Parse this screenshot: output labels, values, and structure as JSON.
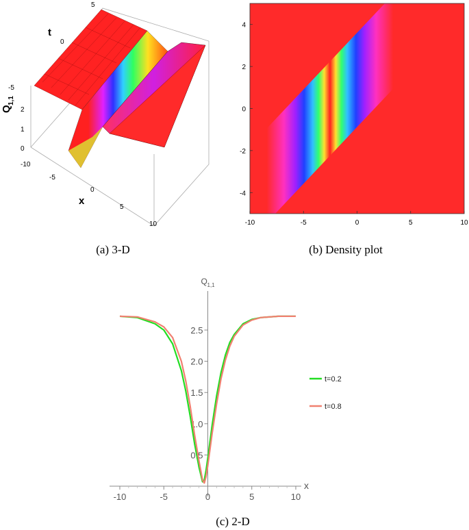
{
  "captions": {
    "a": "(a) 3-D",
    "b": "(b) Density plot",
    "c": "(c) 2-D"
  },
  "colors": {
    "line_t02": "#22dd22",
    "line_t08": "#f08070",
    "axis": "#888888",
    "tick_text": "#555555"
  },
  "chart_data": [
    {
      "type": "surface3d",
      "xlabel": "x",
      "ylabel": "t",
      "zlabel": "Q",
      "zlabel_sub": "1,1",
      "x_ticks": [
        "-10",
        "-5",
        "0",
        "5",
        "10"
      ],
      "t_ticks": [
        "-5",
        "0",
        "5"
      ],
      "z_ticks": [
        "0",
        "1",
        "2"
      ],
      "xlim": [
        -10,
        10
      ],
      "tlim": [
        -5,
        5
      ],
      "colormap": "hue",
      "description_values": {
        "plateau": 2.72,
        "minimum": 0.07
      }
    },
    {
      "type": "heatmap",
      "x_ticks": [
        "-10",
        "-5",
        "0",
        "5",
        "10"
      ],
      "y_ticks": [
        "4",
        "2",
        "0",
        "-2",
        "-4"
      ],
      "xlim": [
        -10,
        10
      ],
      "ylim": [
        -5,
        5
      ],
      "colormap": "hue",
      "trough_center": {
        "t": [
          -5,
          5
        ],
        "x": [
          -2.1,
          0.6
        ]
      }
    },
    {
      "type": "line",
      "xlabel": "x",
      "ylabel": "Q",
      "ylabel_sub": "1,1",
      "xlim": [
        -10,
        10
      ],
      "ylim": [
        0,
        2.9
      ],
      "x_ticks": [
        "-10",
        "-5",
        "0",
        "5",
        "10"
      ],
      "y_ticks": [
        "0.5",
        "1.0",
        "1.5",
        "2.0",
        "2.5"
      ],
      "legend_position": "right",
      "series": [
        {
          "name": "t=0.2",
          "color": "#22dd22",
          "x": [
            -10,
            -8,
            -6,
            -5,
            -4,
            -3,
            -2.5,
            -2,
            -1.5,
            -1,
            -0.6,
            -0.4,
            -0.2,
            0,
            0.5,
            1,
            1.5,
            2,
            2.5,
            3,
            4,
            5,
            6,
            8,
            10
          ],
          "y": [
            2.72,
            2.7,
            2.6,
            2.5,
            2.28,
            1.85,
            1.52,
            1.12,
            0.68,
            0.3,
            0.07,
            0.1,
            0.25,
            0.45,
            0.98,
            1.45,
            1.82,
            2.1,
            2.3,
            2.43,
            2.6,
            2.67,
            2.7,
            2.72,
            2.72
          ]
        },
        {
          "name": "t=0.8",
          "color": "#f08070",
          "x": [
            -10,
            -8,
            -6,
            -5,
            -4,
            -3,
            -2.5,
            -2,
            -1.5,
            -1,
            -0.6,
            -0.4,
            -0.2,
            0,
            0.5,
            1,
            1.5,
            2,
            2.5,
            3,
            4,
            5,
            6,
            8,
            10
          ],
          "y": [
            2.72,
            2.71,
            2.63,
            2.55,
            2.38,
            2.0,
            1.68,
            1.28,
            0.82,
            0.4,
            0.1,
            0.05,
            0.15,
            0.33,
            0.85,
            1.32,
            1.72,
            2.02,
            2.24,
            2.4,
            2.58,
            2.66,
            2.7,
            2.72,
            2.72
          ]
        }
      ]
    }
  ]
}
